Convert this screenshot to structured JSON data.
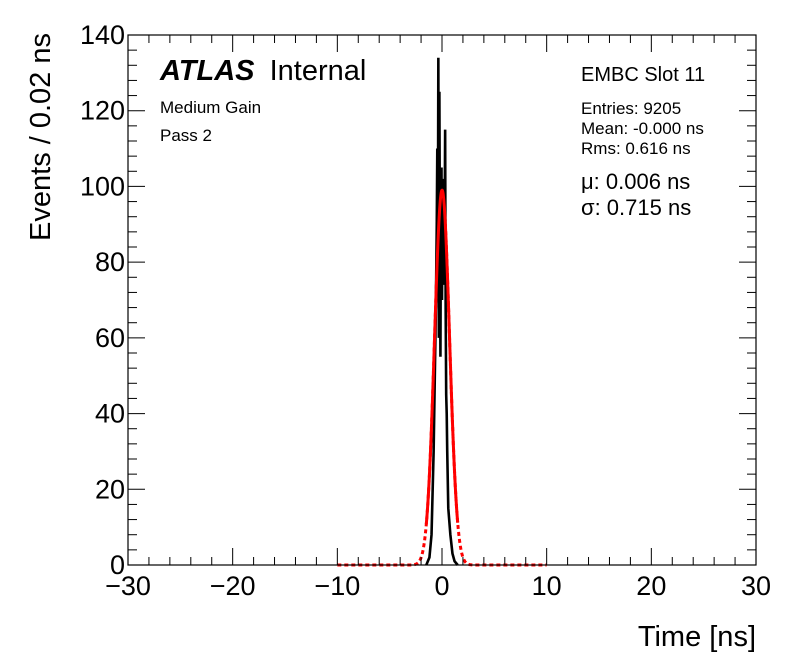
{
  "chart_data": {
    "type": "line",
    "xlabel": "Time [ns]",
    "ylabel": "Events / 0.02 ns",
    "xlim": [
      -30,
      30
    ],
    "ylim": [
      0,
      140
    ],
    "xticks": [
      "−30",
      "−20",
      "−10",
      "0",
      "10",
      "20",
      "30"
    ],
    "yticks": [
      "0",
      "20",
      "40",
      "60",
      "80",
      "100",
      "120",
      "140"
    ],
    "grid": false,
    "atlas_label": {
      "atlas": "ATLAS",
      "internal": "Internal"
    },
    "left_notes": [
      "Medium Gain",
      "Pass 2"
    ],
    "stats": {
      "title": "EMBC Slot 11",
      "entries": "Entries: 9205",
      "mean": "Mean: -0.000 ns",
      "rms": "Rms: 0.616 ns",
      "mu": "μ: 0.006 ns",
      "sigma": "σ: 0.715 ns"
    },
    "series": [
      {
        "kind": "histogram",
        "color": "#000000",
        "x": [
          -1.5,
          -1.2,
          -1.0,
          -0.8,
          -0.6,
          -0.5,
          -0.45,
          -0.4,
          -0.35,
          -0.3,
          -0.25,
          -0.2,
          -0.15,
          -0.1,
          -0.05,
          0.0,
          0.05,
          0.1,
          0.15,
          0.2,
          0.25,
          0.3,
          0.35,
          0.4,
          0.45,
          0.5,
          0.6,
          0.8,
          1.0,
          1.2,
          1.5
        ],
        "y": [
          0,
          2,
          8,
          30,
          65,
          90,
          110,
          78,
          134,
          60,
          125,
          85,
          55,
          98,
          105,
          70,
          95,
          80,
          102,
          74,
          88,
          115,
          68,
          45,
          40,
          30,
          15,
          8,
          3,
          1,
          0
        ]
      },
      {
        "kind": "fit",
        "color": "#ff0000",
        "mu": 0.006,
        "sigma": 0.715,
        "amplitude": 99,
        "solid_range": [
          -1.5,
          1.5
        ],
        "dashed_range": [
          -10,
          10
        ]
      }
    ]
  }
}
